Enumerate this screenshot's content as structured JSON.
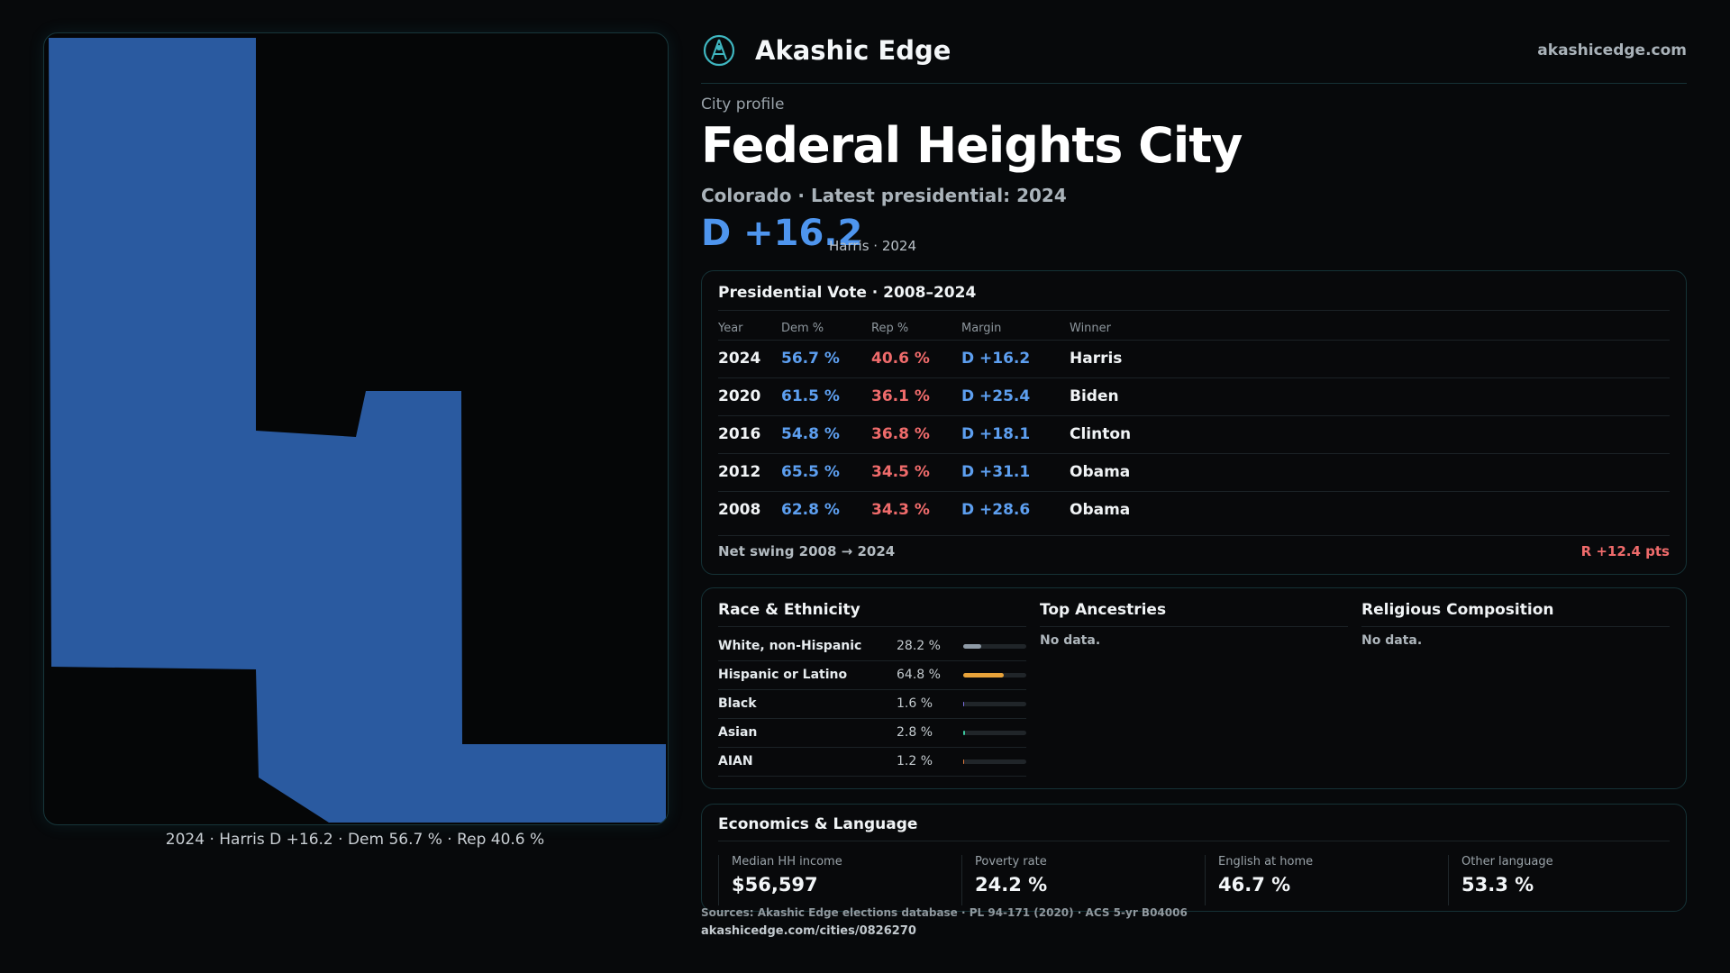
{
  "brand": {
    "name": "Akashic Edge",
    "url": "akashicedge.com"
  },
  "profile": {
    "eyebrow": "City profile",
    "title": "Federal Heights City",
    "subtitle": "Colorado · Latest presidential: 2024",
    "margin": "D +16.2",
    "margin_note": "Harris · 2024"
  },
  "map": {
    "caption": "2024 · Harris D +16.2 · Dem 56.7 % · Rep 40.6 %",
    "fill_color": "#2a5aa0"
  },
  "vote": {
    "title": "Presidential Vote · 2008–2024",
    "headers": {
      "year": "Year",
      "dem": "Dem %",
      "rep": "Rep %",
      "margin": "Margin",
      "winner": "Winner"
    },
    "rows": [
      {
        "year": "2024",
        "dem": "56.7 %",
        "rep": "40.6 %",
        "margin": "D +16.2",
        "winner": "Harris"
      },
      {
        "year": "2020",
        "dem": "61.5 %",
        "rep": "36.1 %",
        "margin": "D +25.4",
        "winner": "Biden"
      },
      {
        "year": "2016",
        "dem": "54.8 %",
        "rep": "36.8 %",
        "margin": "D +18.1",
        "winner": "Clinton"
      },
      {
        "year": "2012",
        "dem": "65.5 %",
        "rep": "34.5 %",
        "margin": "D +31.1",
        "winner": "Obama"
      },
      {
        "year": "2008",
        "dem": "62.8 %",
        "rep": "34.3 %",
        "margin": "D +28.6",
        "winner": "Obama"
      }
    ],
    "swing_label": "Net swing 2008 → 2024",
    "swing_value": "R +12.4 pts"
  },
  "race": {
    "title": "Race & Ethnicity",
    "rows": [
      {
        "label": "White, non-Hispanic",
        "value": "28.2 %",
        "pct": 28.2,
        "color": "#8e9aa6"
      },
      {
        "label": "Hispanic or Latino",
        "value": "64.8 %",
        "pct": 64.8,
        "color": "#e8a33a"
      },
      {
        "label": "Black",
        "value": "1.6 %",
        "pct": 1.6,
        "color": "#7b6fe0"
      },
      {
        "label": "Asian",
        "value": "2.8 %",
        "pct": 2.8,
        "color": "#3cc8a0"
      },
      {
        "label": "AIAN",
        "value": "1.2 %",
        "pct": 1.2,
        "color": "#e07a3c"
      }
    ]
  },
  "ancestries": {
    "title": "Top Ancestries",
    "empty": "No data."
  },
  "religion": {
    "title": "Religious Composition",
    "empty": "No data."
  },
  "economics": {
    "title": "Economics & Language",
    "stats": [
      {
        "label": "Median HH income",
        "value": "$56,597"
      },
      {
        "label": "Poverty rate",
        "value": "24.2 %"
      },
      {
        "label": "English at home",
        "value": "46.7 %"
      },
      {
        "label": "Other language",
        "value": "53.3 %"
      }
    ]
  },
  "footer": {
    "sources": "Sources: Akashic Edge elections database · PL 94-171 (2020) · ACS 5-yr B04006",
    "permalink": "akashicedge.com/cities/0826270"
  }
}
